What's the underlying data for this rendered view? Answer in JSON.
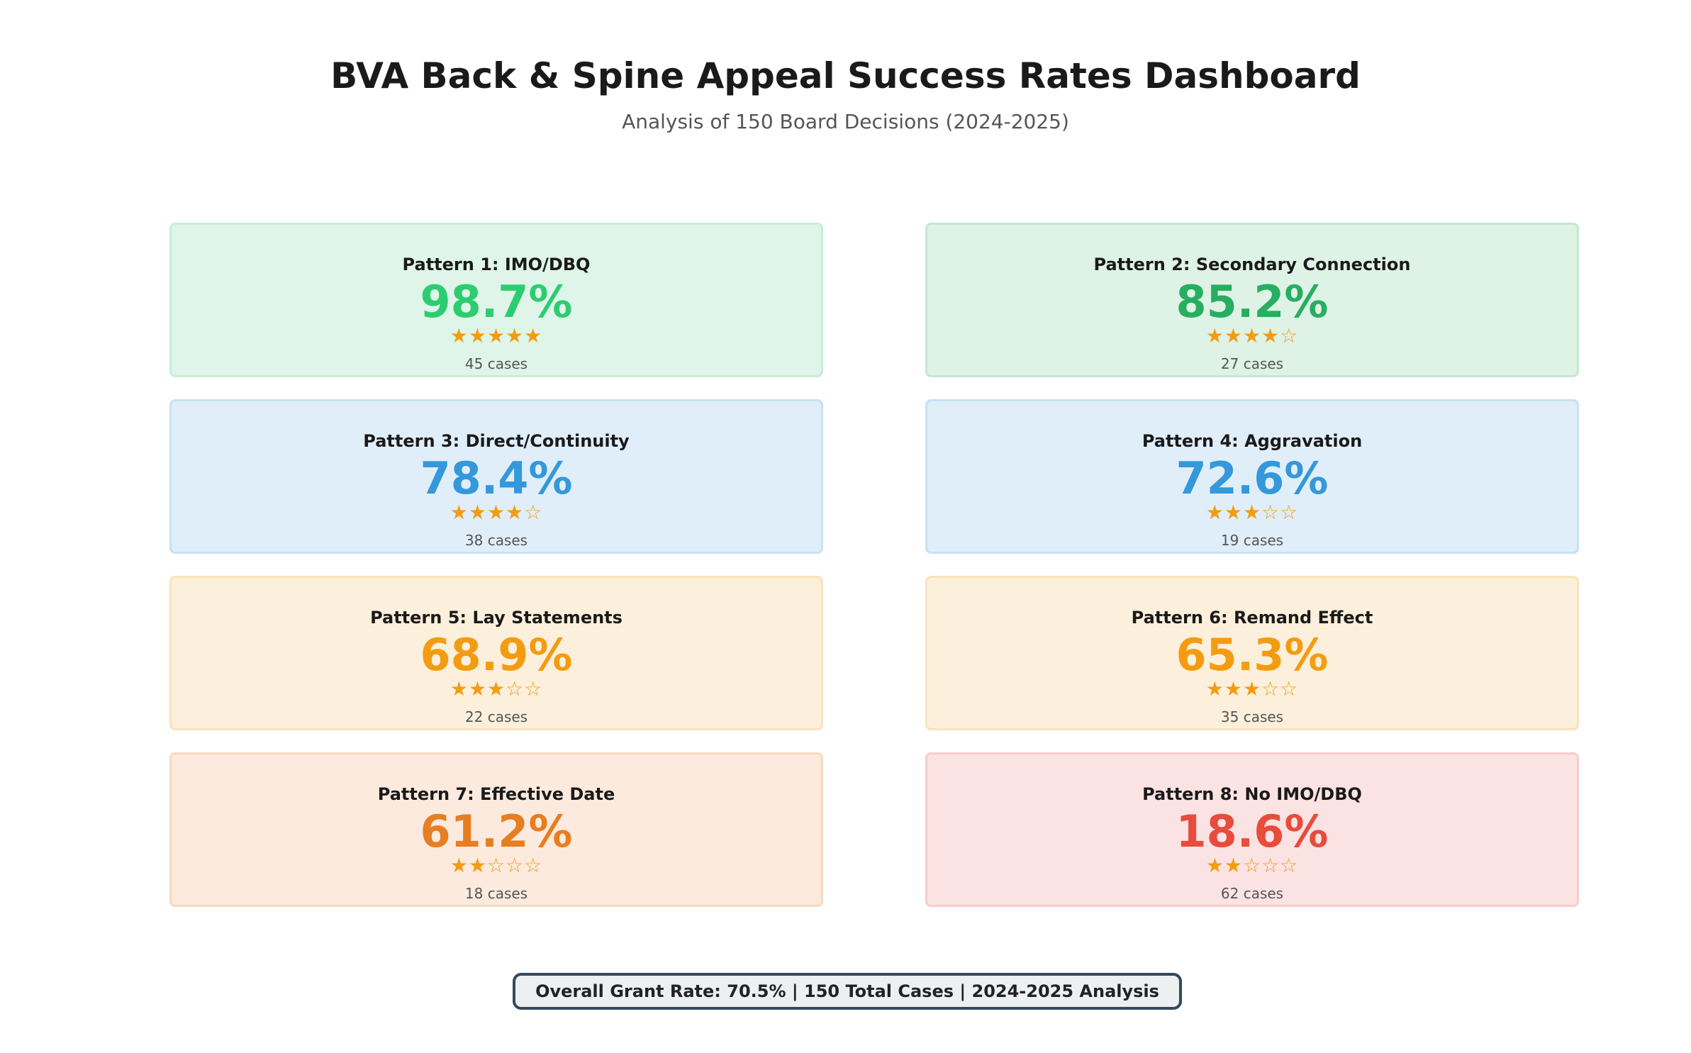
{
  "chart_data": {
    "type": "table",
    "title": "BVA Back & Spine Appeal Success Rates Dashboard",
    "subtitle": "Analysis of 150 Board Decisions (2024-2025)",
    "patterns": [
      {
        "label": "Pattern 1: IMO/DBQ",
        "rate": "98.7%",
        "stars": 5,
        "cases": "45 cases",
        "color": "#2ecc71",
        "bg": "#dff5e9",
        "border": "#c6eed7"
      },
      {
        "label": "Pattern 2: Secondary Connection",
        "rate": "85.2%",
        "stars": 4,
        "cases": "27 cases",
        "color": "#27ae60",
        "bg": "#def2e6",
        "border": "#c4e8d3"
      },
      {
        "label": "Pattern 3: Direct/Continuity",
        "rate": "78.4%",
        "stars": 4,
        "cases": "38 cases",
        "color": "#3498db",
        "bg": "#e0eef9",
        "border": "#c6e1f4"
      },
      {
        "label": "Pattern 4: Aggravation",
        "rate": "72.6%",
        "stars": 3,
        "cases": "19 cases",
        "color": "#3498db",
        "bg": "#e0eef9",
        "border": "#c6e1f4"
      },
      {
        "label": "Pattern 5: Lay Statements",
        "rate": "68.9%",
        "stars": 3,
        "cases": "22 cases",
        "color": "#f39c12",
        "bg": "#fcf0dc",
        "border": "#fbe2bd"
      },
      {
        "label": "Pattern 6: Remand Effect",
        "rate": "65.3%",
        "stars": 3,
        "cases": "35 cases",
        "color": "#f39c12",
        "bg": "#fcf0dc",
        "border": "#fbe2bd"
      },
      {
        "label": "Pattern 7: Effective Date",
        "rate": "61.2%",
        "stars": 2,
        "cases": "18 cases",
        "color": "#e67e22",
        "bg": "#fbeadd",
        "border": "#f8d9bf"
      },
      {
        "label": "Pattern 8: No IMO/DBQ",
        "rate": "18.6%",
        "stars": 2,
        "cases": "62 cases",
        "color": "#e74c3c",
        "bg": "#fbe3e3",
        "border": "#f7cdcb"
      }
    ],
    "footer": "Overall Grant Rate: 70.5% | 150 Total Cases | 2024-2025 Analysis"
  }
}
